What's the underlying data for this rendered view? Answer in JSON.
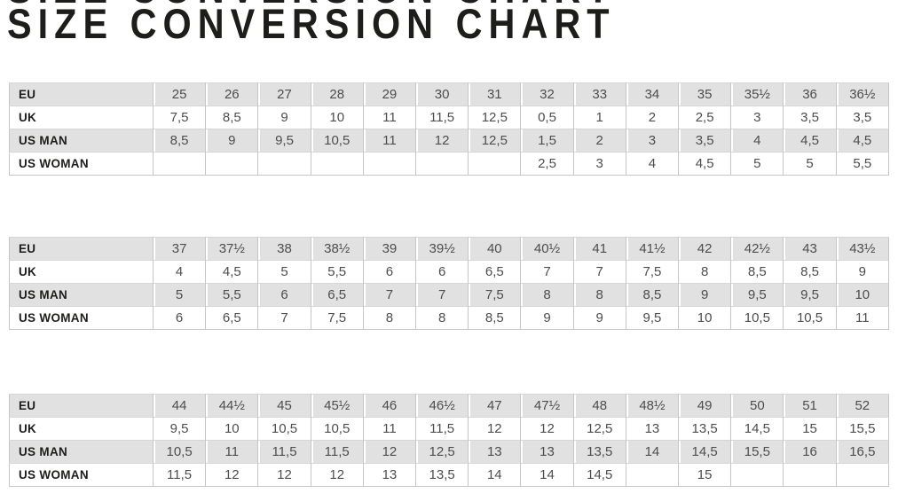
{
  "title": "SIZE CONVERSION CHART",
  "colors": {
    "shaded_row": "#e1e1e1",
    "plain_row": "#ffffff",
    "table_border": "#c6c6c6",
    "row_divider": "#d6d6d6",
    "label_text": "#1d1d1b",
    "value_text": "#4d4d4d",
    "title_text": "#1d1d1b"
  },
  "chart_data": [
    {
      "type": "table",
      "rows": [
        {
          "label": "EU",
          "values": [
            "25",
            "26",
            "27",
            "28",
            "29",
            "30",
            "31",
            "32",
            "33",
            "34",
            "35",
            "35½",
            "36",
            "36½"
          ]
        },
        {
          "label": "UK",
          "values": [
            "7,5",
            "8,5",
            "9",
            "10",
            "11",
            "11,5",
            "12,5",
            "0,5",
            "1",
            "2",
            "2,5",
            "3",
            "3,5",
            "3,5"
          ]
        },
        {
          "label": "US MAN",
          "values": [
            "8,5",
            "9",
            "9,5",
            "10,5",
            "11",
            "12",
            "12,5",
            "1,5",
            "2",
            "3",
            "3,5",
            "4",
            "4,5",
            "4,5"
          ]
        },
        {
          "label": "US WOMAN",
          "values": [
            "",
            "",
            "",
            "",
            "",
            "",
            "",
            "2,5",
            "3",
            "4",
            "4,5",
            "5",
            "5",
            "5,5"
          ]
        }
      ]
    },
    {
      "type": "table",
      "rows": [
        {
          "label": "EU",
          "values": [
            "37",
            "37½",
            "38",
            "38½",
            "39",
            "39½",
            "40",
            "40½",
            "41",
            "41½",
            "42",
            "42½",
            "43",
            "43½"
          ]
        },
        {
          "label": "UK",
          "values": [
            "4",
            "4,5",
            "5",
            "5,5",
            "6",
            "6",
            "6,5",
            "7",
            "7",
            "7,5",
            "8",
            "8,5",
            "8,5",
            "9"
          ]
        },
        {
          "label": "US MAN",
          "values": [
            "5",
            "5,5",
            "6",
            "6,5",
            "7",
            "7",
            "7,5",
            "8",
            "8",
            "8,5",
            "9",
            "9,5",
            "9,5",
            "10"
          ]
        },
        {
          "label": "US WOMAN",
          "values": [
            "6",
            "6,5",
            "7",
            "7,5",
            "8",
            "8",
            "8,5",
            "9",
            "9",
            "9,5",
            "10",
            "10,5",
            "10,5",
            "11"
          ]
        }
      ]
    },
    {
      "type": "table",
      "rows": [
        {
          "label": "EU",
          "values": [
            "44",
            "44½",
            "45",
            "45½",
            "46",
            "46½",
            "47",
            "47½",
            "48",
            "48½",
            "49",
            "50",
            "51",
            "52"
          ]
        },
        {
          "label": "UK",
          "values": [
            "9,5",
            "10",
            "10,5",
            "10,5",
            "11",
            "11,5",
            "12",
            "12",
            "12,5",
            "13",
            "13,5",
            "14,5",
            "15",
            "15,5"
          ]
        },
        {
          "label": "US MAN",
          "values": [
            "10,5",
            "11",
            "11,5",
            "11,5",
            "12",
            "12,5",
            "13",
            "13",
            "13,5",
            "14",
            "14,5",
            "15,5",
            "16",
            "16,5"
          ]
        },
        {
          "label": "US WOMAN",
          "values": [
            "11,5",
            "12",
            "12",
            "12",
            "13",
            "13,5",
            "14",
            "14",
            "14,5",
            "",
            "15",
            "",
            "",
            ""
          ]
        }
      ]
    }
  ]
}
